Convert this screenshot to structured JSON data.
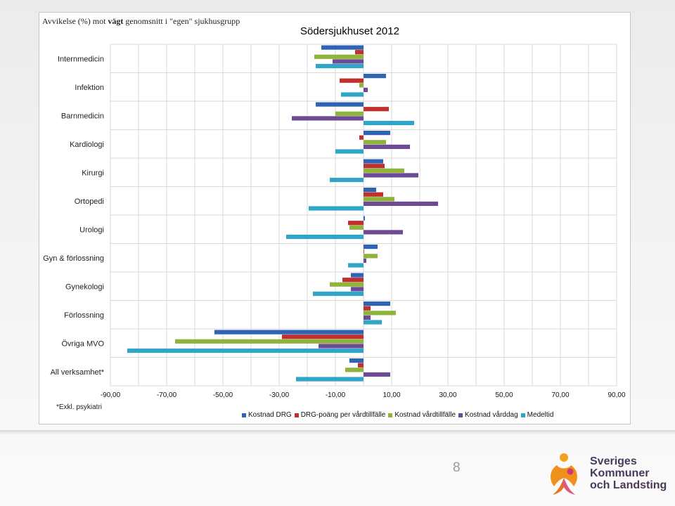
{
  "slide": {
    "subtitle_prefix": "Avvikelse (%) mot ",
    "subtitle_bold": "vägt",
    "subtitle_suffix": " genomsnitt i \"egen\" sjukhusgrupp",
    "footnote": "*Exkl. psykiatri",
    "page_number": "8",
    "logo_lines": [
      "Sveriges",
      "Kommuner",
      "och Landsting"
    ]
  },
  "chart_data": {
    "type": "bar",
    "orientation": "horizontal",
    "title": "Södersjukhuset 2012",
    "xlim": [
      -90,
      90
    ],
    "ticks": [
      "-90,00",
      "-70,00",
      "-50,00",
      "-30,00",
      "-10,00",
      "10,00",
      "30,00",
      "50,00",
      "70,00",
      "90,00"
    ],
    "tick_values": [
      -90,
      -70,
      -50,
      -30,
      -10,
      10,
      30,
      50,
      70,
      90
    ],
    "grid": true,
    "legend_position": "bottom",
    "categories": [
      "Internmedicin",
      "Infektion",
      "Barnmedicin",
      "Kardiologi",
      "Kirurgi",
      "Ortopedi",
      "Urologi",
      "Gyn & förlossning",
      "Gynekologi",
      "Förlossning",
      "Övriga MVO",
      "All verksamhet*"
    ],
    "series": [
      {
        "name": "Kostnad DRG",
        "color": "#2f64b4",
        "values": [
          -15,
          8,
          -17,
          9.5,
          7,
          4.5,
          0.5,
          5,
          -4.5,
          9.5,
          -53,
          -5
        ]
      },
      {
        "name": "DRG-poäng per vårdtillfälle",
        "color": "#c0302d",
        "values": [
          -3,
          -8.5,
          9,
          -1.5,
          7.5,
          7,
          -5.5,
          0,
          -7.5,
          2.5,
          -29,
          -2
        ]
      },
      {
        "name": "Kostnad vårdtillfälle",
        "color": "#8fb43b",
        "values": [
          -17.5,
          -1.5,
          -10,
          8,
          14.5,
          11,
          -5,
          5,
          -12,
          11.5,
          -67,
          -6.5
        ]
      },
      {
        "name": "Kostnad vårddag",
        "color": "#6c4a94",
        "values": [
          -11,
          1.5,
          -25.5,
          16.5,
          19.5,
          26.5,
          14,
          1,
          -4.5,
          2.5,
          -16,
          9.5
        ]
      },
      {
        "name": "Medeltid",
        "color": "#2fa5c7",
        "values": [
          -17,
          -8,
          18,
          -10,
          -12,
          -19.5,
          -27.5,
          -5.5,
          -18,
          6.5,
          -84,
          -24
        ]
      }
    ]
  }
}
